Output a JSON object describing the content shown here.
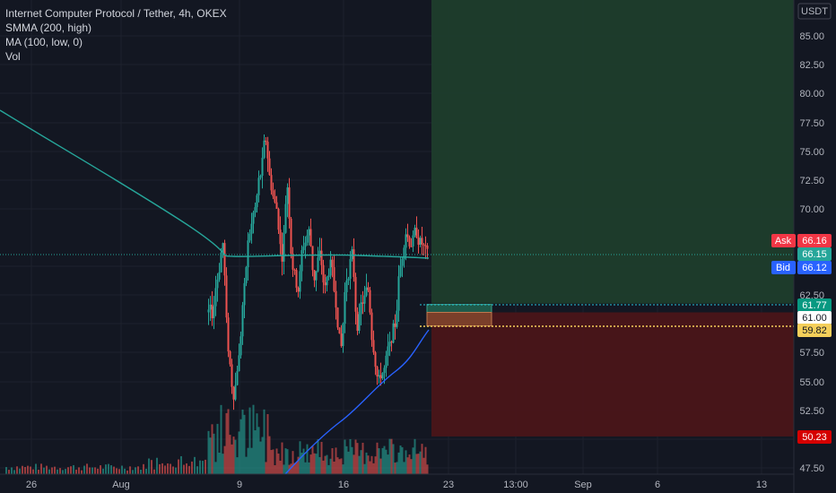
{
  "legend": {
    "title": "Internet Computer Protocol / Tether, 4h, OKEX",
    "ind1": "SMMA (200, high)",
    "ind2": "MA (100, low, 0)",
    "ind3": "Vol"
  },
  "price_axis": {
    "currency": "USDT",
    "ticks": [
      "85.00",
      "82.50",
      "80.00",
      "77.50",
      "75.00",
      "72.50",
      "70.00",
      "62.50",
      "57.50",
      "55.00",
      "52.50",
      "47.50"
    ]
  },
  "time_axis": {
    "ticks": [
      "26",
      "Aug",
      "9",
      "16",
      "23",
      "13:00",
      "Sep",
      "6",
      "13"
    ]
  },
  "price_tags": {
    "ask": {
      "label": "Ask",
      "value": "66.16"
    },
    "last": {
      "value": "66.15"
    },
    "bid": {
      "label": "Bid",
      "value": "66.12"
    },
    "target": {
      "value": "61.77"
    },
    "entry": {
      "value": "61.00"
    },
    "stop_level": {
      "value": "59.82"
    },
    "stop": {
      "value": "50.23"
    }
  },
  "colors": {
    "background": "#131722",
    "up": "#26a69a",
    "down": "#ef5350",
    "smma": "#26a69a",
    "ma": "#2962ff",
    "profit_zone": "#1e3d2c",
    "loss_zone": "#4a1519",
    "ask": "#f23645",
    "bid": "#2962ff",
    "last": "#26a69a",
    "entry": "#ffffff",
    "stop_level": "#f5cf5a",
    "stop": "#d50000"
  },
  "chart_data": {
    "type": "candlestick",
    "symbol": "ICP/USDT",
    "timeframe": "4h",
    "exchange": "OKEX",
    "ylim": [
      46.5,
      87
    ],
    "position": {
      "profit_target": 61.77,
      "entry": 61.0,
      "stop_level": 59.82,
      "stop": 50.23,
      "zone_top": 87
    }
  }
}
